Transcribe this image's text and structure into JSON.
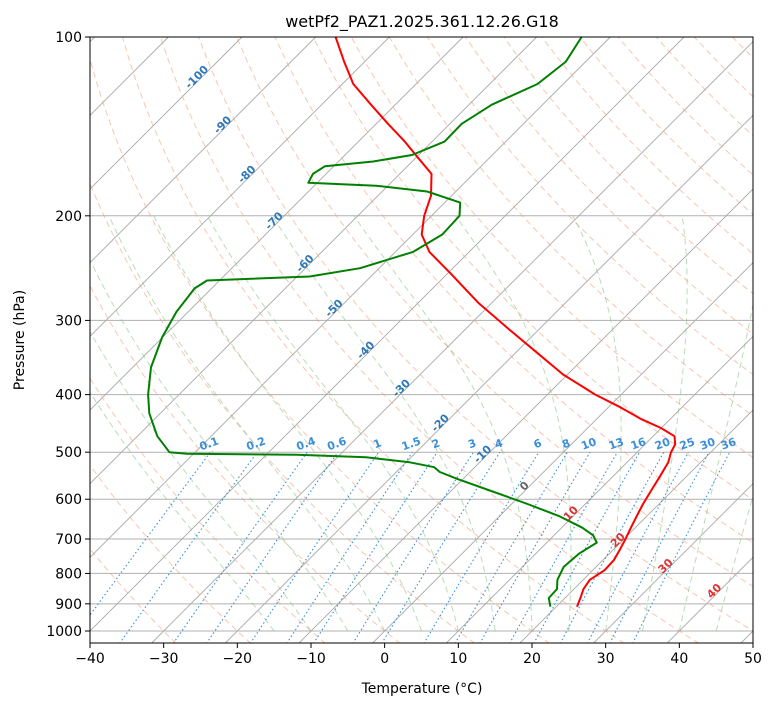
{
  "chart_data": {
    "type": "line",
    "subtype": "skew-t log-p",
    "title": "wetPf2_PAZ1.2025.361.12.26.G18",
    "xlabel": "Temperature (°C)",
    "ylabel": "Pressure (hPa)",
    "xlim": [
      -40,
      50
    ],
    "ylim": [
      1050,
      100
    ],
    "x_ticks": [
      -40,
      -30,
      -20,
      -10,
      0,
      10,
      20,
      30,
      40,
      50
    ],
    "x_tick_labels": [
      "−40",
      "−30",
      "−20",
      "−10",
      "0",
      "10",
      "20",
      "30",
      "40",
      "50"
    ],
    "y_ticks": [
      100,
      200,
      300,
      400,
      500,
      600,
      700,
      800,
      900,
      1000
    ],
    "y_tick_labels": [
      "100",
      "200",
      "300",
      "400",
      "500",
      "600",
      "700",
      "800",
      "900",
      "1000"
    ],
    "grid": true,
    "series": [
      {
        "name": "Temperature",
        "color": "#ff0000",
        "points": [
          {
            "p": 910,
            "t": 22.8
          },
          {
            "p": 880,
            "t": 22.1
          },
          {
            "p": 850,
            "t": 21.3
          },
          {
            "p": 820,
            "t": 20.9
          },
          {
            "p": 790,
            "t": 21.6
          },
          {
            "p": 760,
            "t": 21.5
          },
          {
            "p": 730,
            "t": 20.9
          },
          {
            "p": 700,
            "t": 20.2
          },
          {
            "p": 670,
            "t": 19.4
          },
          {
            "p": 640,
            "t": 18.6
          },
          {
            "p": 610,
            "t": 17.8
          },
          {
            "p": 580,
            "t": 17.1
          },
          {
            "p": 550,
            "t": 16.4
          },
          {
            "p": 520,
            "t": 15.6
          },
          {
            "p": 500,
            "t": 14.6
          },
          {
            "p": 485,
            "t": 14.1
          },
          {
            "p": 470,
            "t": 12.9
          },
          {
            "p": 455,
            "t": 9.9
          },
          {
            "p": 440,
            "t": 6.1
          },
          {
            "p": 420,
            "t": 1.6
          },
          {
            "p": 400,
            "t": -3.5
          },
          {
            "p": 370,
            "t": -10.6
          },
          {
            "p": 340,
            "t": -17.1
          },
          {
            "p": 310,
            "t": -24.2
          },
          {
            "p": 280,
            "t": -31.9
          },
          {
            "p": 250,
            "t": -39.6
          },
          {
            "p": 230,
            "t": -45.4
          },
          {
            "p": 215,
            "t": -48.8
          },
          {
            "p": 200,
            "t": -51.0
          },
          {
            "p": 185,
            "t": -52.8
          },
          {
            "p": 170,
            "t": -55.7
          },
          {
            "p": 160,
            "t": -59.6
          },
          {
            "p": 150,
            "t": -63.7
          },
          {
            "p": 140,
            "t": -68.4
          },
          {
            "p": 130,
            "t": -73.3
          },
          {
            "p": 120,
            "t": -78.5
          },
          {
            "p": 110,
            "t": -82.8
          },
          {
            "p": 100,
            "t": -87.3
          }
        ]
      },
      {
        "name": "Dewpoint",
        "color": "#008000",
        "points": [
          {
            "p": 910,
            "t": 19.2
          },
          {
            "p": 880,
            "t": 17.8
          },
          {
            "p": 850,
            "t": 17.7
          },
          {
            "p": 820,
            "t": 16.5
          },
          {
            "p": 780,
            "t": 15.6
          },
          {
            "p": 740,
            "t": 15.9
          },
          {
            "p": 710,
            "t": 16.8
          },
          {
            "p": 690,
            "t": 15.3
          },
          {
            "p": 670,
            "t": 12.8
          },
          {
            "p": 640,
            "t": 8.0
          },
          {
            "p": 610,
            "t": 1.9
          },
          {
            "p": 580,
            "t": -4.8
          },
          {
            "p": 555,
            "t": -10.7
          },
          {
            "p": 540,
            "t": -14.1
          },
          {
            "p": 530,
            "t": -15.5
          },
          {
            "p": 520,
            "t": -19.5
          },
          {
            "p": 510,
            "t": -26.1
          },
          {
            "p": 505,
            "t": -35.8
          },
          {
            "p": 503,
            "t": -50.9
          },
          {
            "p": 500,
            "t": -53.5
          },
          {
            "p": 470,
            "t": -57.3
          },
          {
            "p": 430,
            "t": -61.5
          },
          {
            "p": 400,
            "t": -64.2
          },
          {
            "p": 360,
            "t": -67.5
          },
          {
            "p": 320,
            "t": -70.1
          },
          {
            "p": 290,
            "t": -71.6
          },
          {
            "p": 265,
            "t": -72.3
          },
          {
            "p": 257,
            "t": -71.7
          },
          {
            "p": 253,
            "t": -58.3
          },
          {
            "p": 245,
            "t": -52.6
          },
          {
            "p": 230,
            "t": -47.6
          },
          {
            "p": 215,
            "t": -46.0
          },
          {
            "p": 200,
            "t": -46.2
          },
          {
            "p": 190,
            "t": -47.9
          },
          {
            "p": 182,
            "t": -53.9
          },
          {
            "p": 178,
            "t": -61.6
          },
          {
            "p": 176,
            "t": -71.2
          },
          {
            "p": 170,
            "t": -71.8
          },
          {
            "p": 165,
            "t": -71.2
          },
          {
            "p": 162,
            "t": -65.3
          },
          {
            "p": 158,
            "t": -60.9
          },
          {
            "p": 150,
            "t": -58.3
          },
          {
            "p": 140,
            "t": -58.4
          },
          {
            "p": 130,
            "t": -56.9
          },
          {
            "p": 120,
            "t": -53.5
          },
          {
            "p": 110,
            "t": -52.7
          },
          {
            "p": 100,
            "t": -53.9
          }
        ]
      }
    ],
    "dry_adiabats_theta_c": [
      -30,
      -20,
      -10,
      0,
      10,
      20,
      30,
      40,
      50,
      60,
      70,
      80,
      90,
      100,
      110,
      120,
      130,
      140,
      150,
      160,
      170,
      180,
      190,
      200,
      210
    ],
    "moist_adiabats_c": [
      -15,
      -10,
      -5,
      0,
      5,
      10,
      15,
      20,
      25,
      30,
      35,
      40,
      45
    ],
    "mixing_ratio_lines_gkg": [
      0.1,
      0.2,
      0.4,
      0.6,
      1,
      1.5,
      2,
      3,
      4,
      6,
      8,
      10,
      13,
      16,
      20,
      25,
      30,
      36
    ],
    "mixing_ratio_labels": [
      "0.1",
      "0.2",
      "0.4",
      "0.6",
      "1",
      "1.5",
      "2",
      "3",
      "4",
      "6",
      "8",
      "10",
      "13",
      "16",
      "20",
      "25",
      "30",
      "36"
    ],
    "isotherm_labels_blue": [
      {
        "text": "-100",
        "t": -100,
        "p": 118
      },
      {
        "text": "-90",
        "t": -90,
        "p": 142
      },
      {
        "text": "-80",
        "t": -80,
        "p": 172
      },
      {
        "text": "-70",
        "t": -70,
        "p": 206
      },
      {
        "text": "-60",
        "t": -60,
        "p": 243
      },
      {
        "text": "-50",
        "t": -50,
        "p": 289
      },
      {
        "text": "-40",
        "t": -40,
        "p": 340
      },
      {
        "text": "-30",
        "t": -30,
        "p": 394
      },
      {
        "text": "-20",
        "t": -20,
        "p": 451
      },
      {
        "text": "-10",
        "t": -10,
        "p": 509
      }
    ],
    "isotherm_labels_warm": [
      {
        "text": "0",
        "t": 0,
        "color": "#666666",
        "p": 576
      },
      {
        "text": "10",
        "t": 10,
        "color": "#dd3333",
        "p": 640
      },
      {
        "text": "20",
        "t": 20,
        "color": "#dd3333",
        "p": 710
      },
      {
        "text": "30",
        "t": 30,
        "color": "#dd3333",
        "p": 785
      },
      {
        "text": "40",
        "t": 40,
        "color": "#dd3333",
        "p": 865
      }
    ]
  }
}
